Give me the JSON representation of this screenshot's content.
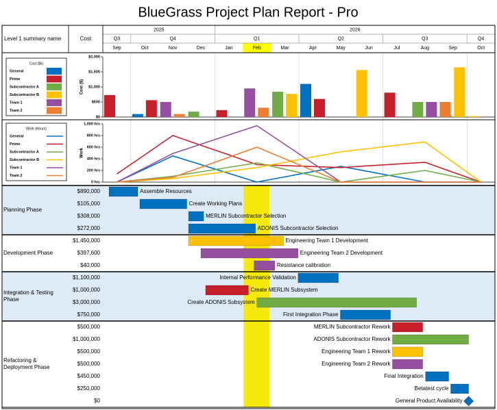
{
  "header": {
    "title": "BlueGrass Project Plan Report - Pro",
    "name_col": "Level 1 summary name",
    "cost_col": "Cost"
  },
  "timeline": {
    "years": [
      "2025",
      null,
      null,
      null,
      "2026",
      null,
      null,
      null,
      null,
      null,
      null,
      null,
      null,
      null
    ],
    "quarters": [
      "Q3",
      "Q4",
      null,
      null,
      "Q1",
      null,
      null,
      "Q2",
      null,
      null,
      "Q3",
      null,
      null,
      "Q4"
    ],
    "months": [
      "Sep",
      "Oct",
      "Nov",
      "Dec",
      "Jan",
      "Feb",
      "Mar",
      "Apr",
      "May",
      "Jun",
      "Jul",
      "Aug",
      "Sep",
      "Oct"
    ],
    "current_month": "Feb"
  },
  "chart_data": [
    {
      "type": "bar",
      "legend_title": "Cost ($k)",
      "ylabel": "Cost ($)",
      "ylim": [
        0,
        2000
      ],
      "yticks": [
        {
          "value": 0,
          "label": "$0"
        },
        {
          "value": 500,
          "label": "$500"
        },
        {
          "value": 1000,
          "label": "$1,000"
        },
        {
          "value": 1500,
          "label": "$1,500"
        },
        {
          "value": 2000,
          "label": "$2,000"
        }
      ],
      "series": [
        {
          "name": "General",
          "color": "#0070c0",
          "values": [
            null,
            100,
            null,
            null,
            null,
            null,
            null,
            1100,
            null,
            null,
            null,
            null,
            null,
            null
          ]
        },
        {
          "name": "Prime",
          "color": "#c8202a",
          "values": [
            730,
            560,
            null,
            null,
            230,
            null,
            null,
            600,
            null,
            null,
            810,
            null,
            50,
            null
          ]
        },
        {
          "name": "Subcontractor A",
          "color": "#70ad47",
          "values": [
            null,
            null,
            null,
            180,
            null,
            null,
            840,
            null,
            null,
            null,
            null,
            500,
            null,
            null
          ]
        },
        {
          "name": "Subcontractor B",
          "color": "#ffc000",
          "values": [
            null,
            null,
            null,
            null,
            null,
            null,
            770,
            null,
            null,
            1560,
            null,
            null,
            1650,
            30
          ]
        },
        {
          "name": "Team 1",
          "color": "#954f9f",
          "values": [
            null,
            null,
            500,
            null,
            null,
            950,
            null,
            null,
            null,
            null,
            null,
            500,
            null,
            null
          ]
        },
        {
          "name": "Team 2",
          "color": "#ed7d31",
          "values": [
            null,
            null,
            100,
            null,
            null,
            310,
            null,
            null,
            null,
            null,
            null,
            500,
            null,
            null
          ]
        }
      ]
    },
    {
      "type": "line",
      "legend_title": "Work (Hours)",
      "ylabel": "Work",
      "ylim": [
        0,
        1000
      ],
      "yticks": [
        {
          "value": 0,
          "label": "0 hrs"
        },
        {
          "value": 200,
          "label": "200 hrs"
        },
        {
          "value": 400,
          "label": "400 hrs"
        },
        {
          "value": 600,
          "label": "600 hrs"
        },
        {
          "value": 800,
          "label": "800 hrs"
        },
        {
          "value": 1000,
          "label": "1,000 hrs"
        }
      ],
      "series": [
        {
          "name": "General",
          "color": "#0070c0",
          "values": [
            0,
            225,
            450,
            300,
            150,
            0,
            90,
            180,
            270,
            180,
            90,
            0,
            0,
            0
          ]
        },
        {
          "name": "Prime",
          "color": "#c8202a",
          "values": [
            140,
            470,
            800,
            633,
            467,
            300,
            283,
            267,
            250,
            280,
            310,
            340,
            170,
            0
          ]
        },
        {
          "name": "Subcontractor A",
          "color": "#70ad47",
          "values": [
            0,
            50,
            100,
            177,
            253,
            330,
            220,
            110,
            0,
            67,
            133,
            200,
            100,
            0
          ]
        },
        {
          "name": "Subcontractor B",
          "color": "#ffc000",
          "values": [
            0,
            30,
            60,
            123,
            187,
            250,
            340,
            430,
            520,
            577,
            633,
            690,
            345,
            0
          ]
        },
        {
          "name": "Team 1",
          "color": "#954f9f",
          "values": [
            0,
            245,
            490,
            650,
            810,
            970,
            647,
            323,
            0,
            0,
            0,
            0,
            0,
            0
          ]
        },
        {
          "name": "Team 2",
          "color": "#ed7d31",
          "values": [
            0,
            40,
            80,
            253,
            427,
            600,
            400,
            200,
            0,
            0,
            0,
            0,
            0,
            0
          ]
        }
      ]
    },
    {
      "type": "gantt",
      "xlim": [
        0,
        14
      ],
      "phases": [
        {
          "name": "Planning Phase",
          "tasks": [
            {
              "cost": "$890,000",
              "name": "Assemble Resources",
              "start": 0.22,
              "end": 1.25,
              "color": "#0070c0",
              "label_side": "right"
            },
            {
              "cost": "$105,000",
              "name": "Create Working Plans",
              "start": 1.32,
              "end": 3.0,
              "color": "#0070c0",
              "label_side": "right"
            },
            {
              "cost": "$308,000",
              "name": "MERLIN Subcontractor Selection",
              "start": 3.06,
              "end": 3.6,
              "color": "#0070c0",
              "label_side": "right"
            },
            {
              "cost": "$272,000",
              "name": "ADONIS Subcontractor Selection",
              "start": 3.06,
              "end": 5.45,
              "color": "#0070c0",
              "label_side": "right"
            }
          ]
        },
        {
          "name": "Development Phase",
          "tasks": [
            {
              "cost": "$1,450,000",
              "name": "Engineering Team 1 Development",
              "start": 3.06,
              "end": 6.45,
              "color": "#ffc000",
              "label_side": "right"
            },
            {
              "cost": "$397,600",
              "name": "Engineering Team 2 Development",
              "start": 3.5,
              "end": 6.97,
              "color": "#954f9f",
              "label_side": "right"
            },
            {
              "cost": "$40,000",
              "name": "Resistance calibration",
              "start": 5.4,
              "end": 6.14,
              "color": "#954f9f",
              "label_side": "right"
            }
          ]
        },
        {
          "name": "Integration & Testing Phase",
          "tasks": [
            {
              "cost": "$1,100,000",
              "name": "Internal Performance Validation",
              "start": 6.97,
              "end": 8.41,
              "color": "#0070c0",
              "label_side": "left"
            },
            {
              "cost": "$1,000,000",
              "name": "Create MERLIN Subsystem",
              "start": 3.67,
              "end": 5.2,
              "color": "#c8202a",
              "label_side": "right"
            },
            {
              "cost": "$3,000,000",
              "name": "Create ADONIS Subsystem",
              "start": 5.5,
              "end": 11.2,
              "color": "#70ad47",
              "label_side": "left"
            },
            {
              "cost": "$750,000",
              "name": "First Integration Phase",
              "start": 8.48,
              "end": 10.27,
              "color": "#0070c0",
              "label_side": "left"
            }
          ]
        },
        {
          "name": "Refactoring & Deployment Phase",
          "tasks": [
            {
              "cost": "$500,000",
              "name": "MERLIN Subcontractor Rework",
              "start": 10.34,
              "end": 11.42,
              "color": "#c8202a",
              "label_side": "left"
            },
            {
              "cost": "$1,000,000",
              "name": "ADONIS Subcontractor Rework",
              "start": 10.34,
              "end": 13.06,
              "color": "#70ad47",
              "label_side": "left"
            },
            {
              "cost": "$500,000",
              "name": "Engineering Team 1 Rework",
              "start": 10.34,
              "end": 11.42,
              "color": "#ffc000",
              "label_side": "left"
            },
            {
              "cost": "$500,000",
              "name": "Engineering Team 2 Rework",
              "start": 10.34,
              "end": 11.42,
              "color": "#954f9f",
              "label_side": "left"
            },
            {
              "cost": "$450,000",
              "name": "Final Integration",
              "start": 11.52,
              "end": 12.35,
              "color": "#0070c0",
              "label_side": "left"
            },
            {
              "cost": "$250,000",
              "name": "Betatest cycle",
              "start": 12.42,
              "end": 13.06,
              "color": "#0070c0",
              "label_side": "left"
            },
            {
              "cost": "$0",
              "name": "General Product Availability",
              "start": 13.06,
              "end": 13.06,
              "color": "#0070c0",
              "label_side": "left",
              "shape": "diamond"
            }
          ]
        }
      ]
    }
  ]
}
